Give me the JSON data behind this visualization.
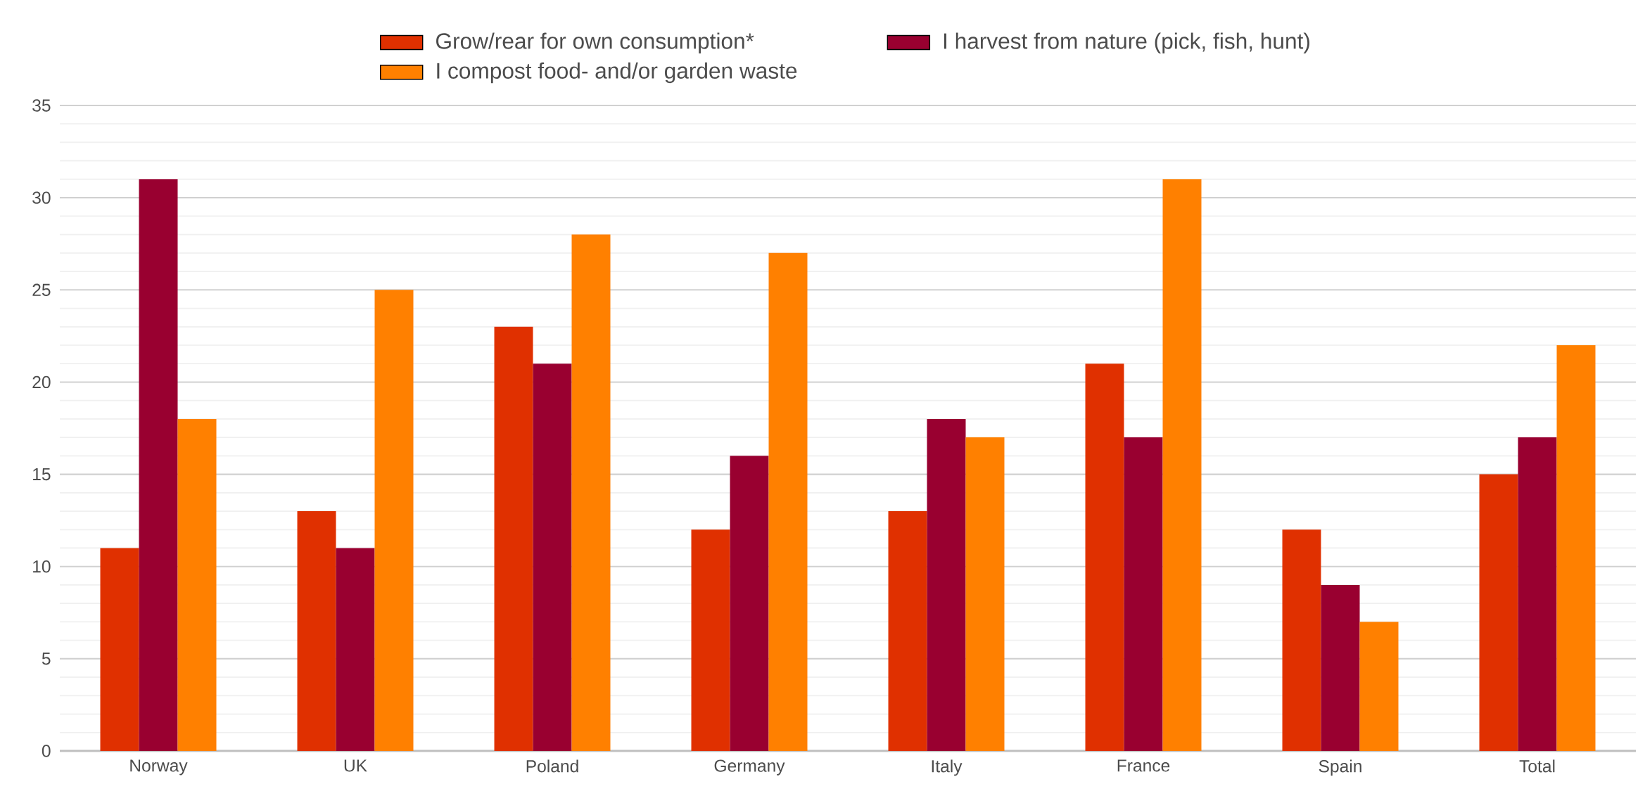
{
  "chart_data": {
    "type": "bar",
    "categories": [
      "Norway",
      "UK",
      "Poland",
      "Germany",
      "Italy",
      "France",
      "Spain",
      "Total"
    ],
    "series": [
      {
        "name": "Grow/rear for own consumption*",
        "color": "#e03000",
        "values": [
          11,
          13,
          23,
          12,
          13,
          21,
          12,
          15
        ]
      },
      {
        "name": "I harvest from nature (pick, fish, hunt)",
        "color": "#990030",
        "values": [
          31,
          11,
          21,
          16,
          18,
          17,
          9,
          17
        ]
      },
      {
        "name": "I compost food- and/or garden waste",
        "color": "#ff8000",
        "values": [
          18,
          25,
          28,
          27,
          17,
          31,
          7,
          22
        ]
      }
    ],
    "ylim": [
      0,
      35
    ],
    "yticks": [
      0,
      5,
      10,
      15,
      20,
      25,
      30,
      35
    ],
    "grid": "y",
    "legend": "top"
  }
}
